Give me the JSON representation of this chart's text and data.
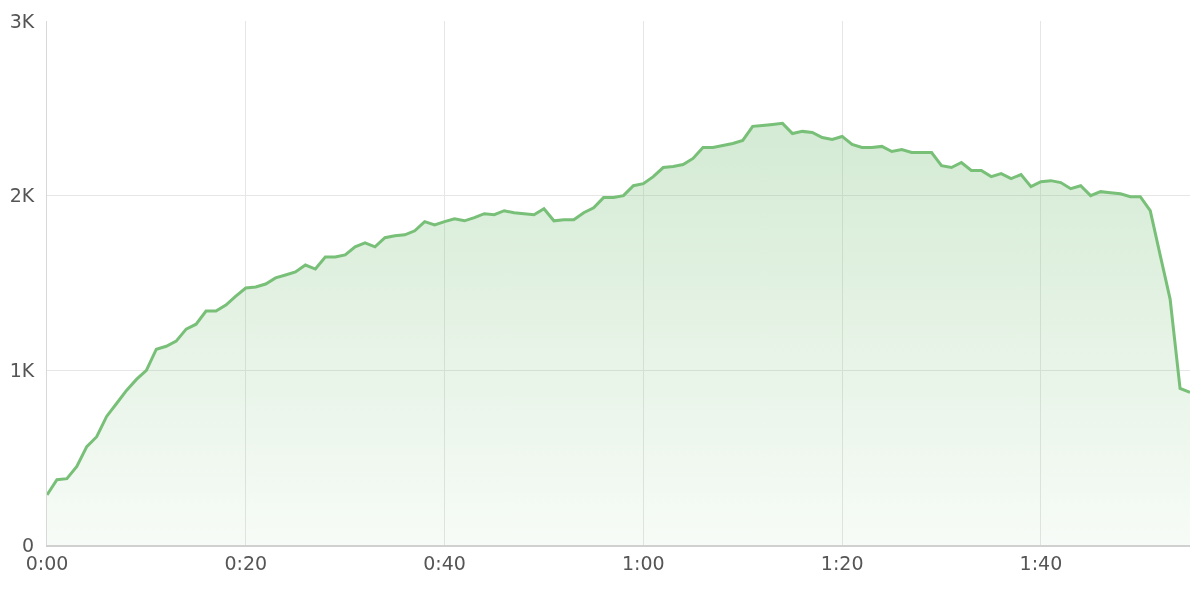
{
  "chart_data": {
    "type": "area",
    "color": "#78bf78",
    "x": [
      0,
      1,
      2,
      3,
      4,
      5,
      6,
      7,
      8,
      9,
      10,
      11,
      12,
      13,
      14,
      15,
      16,
      17,
      18,
      19,
      20,
      21,
      22,
      23,
      24,
      25,
      26,
      27,
      28,
      29,
      30,
      31,
      32,
      33,
      34,
      35,
      36,
      37,
      38,
      39,
      40,
      41,
      42,
      43,
      44,
      45,
      46,
      47,
      48,
      49,
      50,
      51,
      52,
      53,
      54,
      55,
      56,
      57,
      58,
      59,
      60,
      61,
      62,
      63,
      64,
      65,
      66,
      67,
      68,
      69,
      70,
      71,
      72,
      73,
      74,
      75,
      76,
      77,
      78,
      79,
      80,
      81,
      82,
      83,
      84,
      85,
      86,
      87,
      88,
      89,
      90,
      91,
      92,
      93,
      94,
      95,
      96,
      97,
      98,
      99,
      100,
      101,
      102,
      103,
      104,
      105,
      106,
      107,
      108,
      109,
      110,
      111,
      112,
      113,
      114,
      115
    ],
    "values": [
      287,
      374,
      380,
      450,
      563,
      620,
      736,
      810,
      885,
      948,
      1000,
      1121,
      1138,
      1167,
      1236,
      1264,
      1339,
      1339,
      1374,
      1425,
      1471,
      1477,
      1494,
      1529,
      1546,
      1563,
      1603,
      1580,
      1649,
      1649,
      1661,
      1707,
      1730,
      1707,
      1759,
      1770,
      1776,
      1799,
      1851,
      1833,
      1851,
      1868,
      1856,
      1874,
      1897,
      1891,
      1914,
      1902,
      1897,
      1891,
      1925,
      1856,
      1862,
      1862,
      1902,
      1931,
      1989,
      1989,
      2000,
      2057,
      2069,
      2109,
      2161,
      2167,
      2178,
      2213,
      2276,
      2276,
      2287,
      2299,
      2316,
      2397,
      2402,
      2408,
      2414,
      2356,
      2368,
      2362,
      2333,
      2322,
      2339,
      2293,
      2276,
      2276,
      2282,
      2253,
      2264,
      2247,
      2247,
      2247,
      2172,
      2161,
      2190,
      2144,
      2144,
      2109,
      2126,
      2098,
      2121,
      2052,
      2080,
      2086,
      2075,
      2040,
      2057,
      2000,
      2023,
      2017,
      2011,
      1994,
      1994,
      1914,
      1660,
      1408,
      897,
      874
    ],
    "xlim": [
      0,
      115
    ],
    "xticks": [
      {
        "value": 0,
        "label": "0:00"
      },
      {
        "value": 20,
        "label": "0:20"
      },
      {
        "value": 40,
        "label": "0:40"
      },
      {
        "value": 60,
        "label": "1:00"
      },
      {
        "value": 80,
        "label": "1:20"
      },
      {
        "value": 100,
        "label": "1:40"
      }
    ],
    "ylim": [
      0,
      3000
    ],
    "yticks": [
      {
        "value": 0,
        "label": "0"
      },
      {
        "value": 1000,
        "label": "1K"
      },
      {
        "value": 2000,
        "label": "2K"
      },
      {
        "value": 3000,
        "label": "3K"
      }
    ],
    "grid": true,
    "legend": false,
    "marker": "none",
    "line_style": "solid"
  }
}
